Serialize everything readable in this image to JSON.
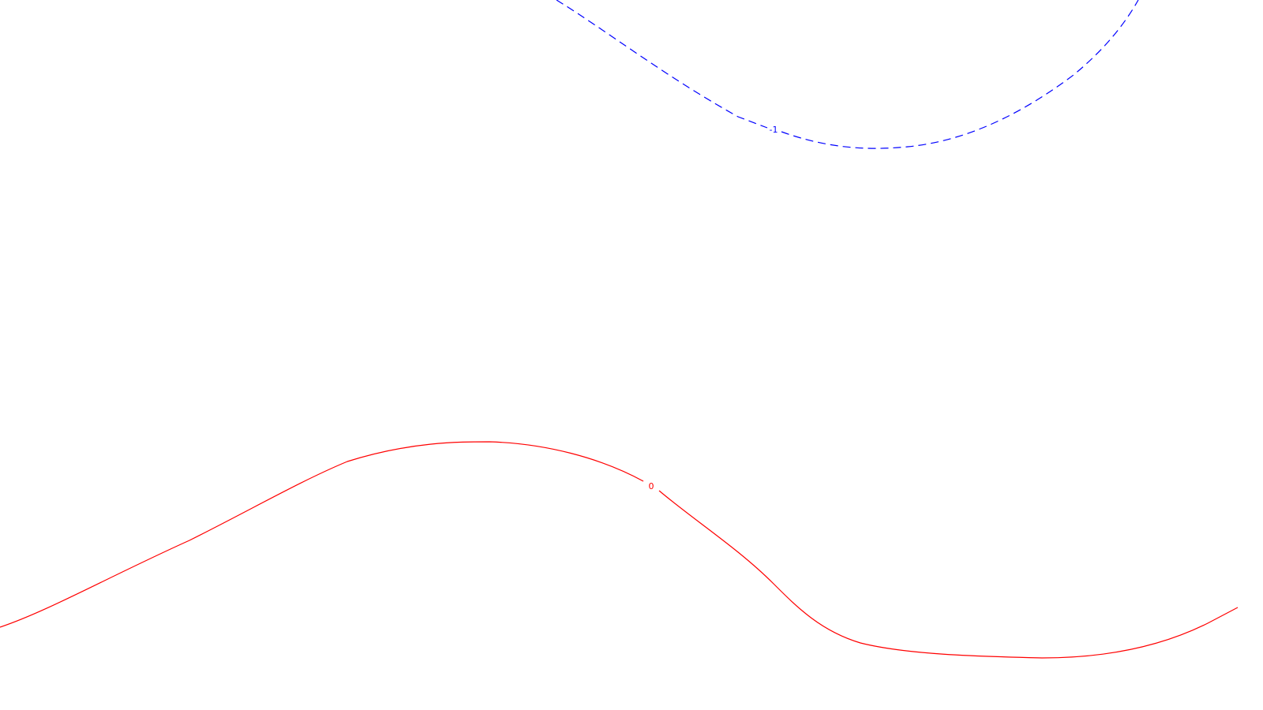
{
  "chart_data": {
    "type": "contour",
    "title": "",
    "xlabel": "",
    "ylabel": "",
    "grid": false,
    "legend": "none",
    "series": [
      {
        "level": "-1",
        "line_style": "dashed",
        "color": "#0000ff",
        "label_point": {
          "x": 980,
          "y": 164
        }
      },
      {
        "level": "0",
        "line_style": "solid",
        "color": "#ff0000",
        "label_point": {
          "x": 825,
          "y": 616
        }
      }
    ]
  }
}
